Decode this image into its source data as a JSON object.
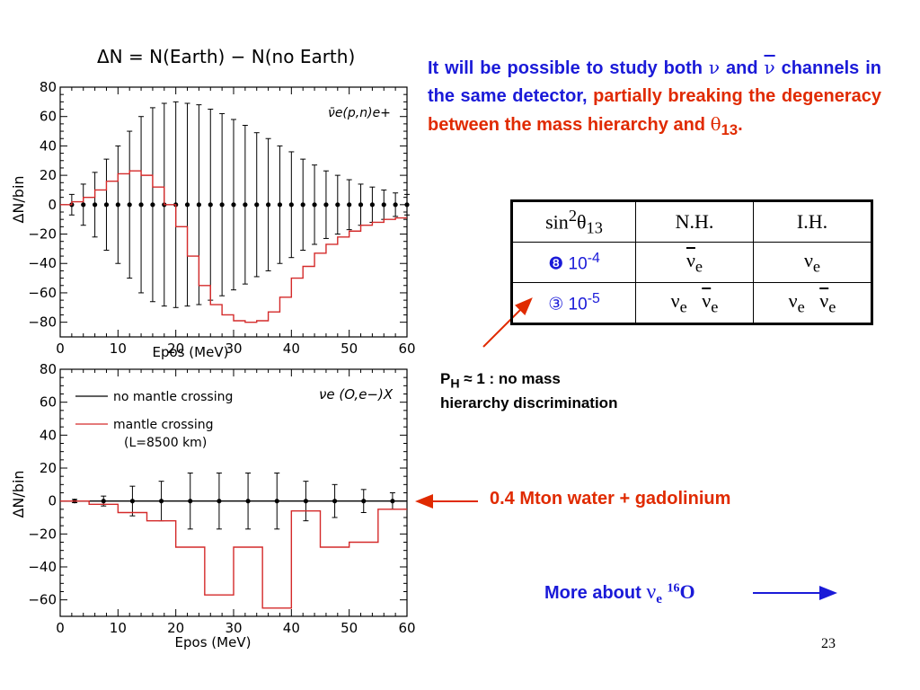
{
  "slide": {
    "paragraph": {
      "part1": "It will be possible to study both ",
      "nu": "ν",
      "and": " and ",
      "nubar": "ν",
      "part2": " channels in the same detector, ",
      "part3": "partially breaking the degeneracy between the mass hierarchy and ",
      "theta": "θ",
      "sub13": "13",
      "dot": "."
    },
    "table": {
      "header": {
        "sin": "sin",
        "sup2": "2",
        "theta": "θ",
        "sub13": "13",
        "nh": "N.H.",
        "ih": "I.H."
      },
      "row1": {
        "marker": "❽",
        "value": " 10",
        "exp": "-4",
        "nh_nu": "ν",
        "nh_sub": "e",
        "ih_nu": "ν",
        "ih_sub": "e"
      },
      "row2": {
        "marker": "③",
        "value": " 10",
        "exp": "-5",
        "nu": "ν",
        "sub": "e"
      }
    },
    "note": {
      "p": "P",
      "h": "H",
      "rest": " ≈ 1 :  no mass hierarchy discrimination"
    },
    "mton_label": "0.4 Mton water + gadolinium",
    "more": {
      "text": "More about  ",
      "nu": "ν",
      "sub": "e",
      "sup": "16",
      "o": "O"
    },
    "page_number": "23",
    "colors": {
      "blue": "#1a1ad8",
      "red": "#e02a00",
      "plot_red": "#d42a2a"
    }
  },
  "chart_data": [
    {
      "type": "line",
      "title": "ΔN = N(Earth) − N(no Earth)",
      "annotation": "ν̄e(p,n)e+",
      "xlabel": "Epos (MeV)",
      "ylabel": "ΔN/bin",
      "xlim": [
        0,
        60
      ],
      "ylim": [
        -90,
        80
      ],
      "xticks": [
        "0",
        "10",
        "20",
        "30",
        "40",
        "50",
        "60"
      ],
      "yticks": [
        "−80",
        "−60",
        "−40",
        "−20",
        "0",
        "20",
        "40",
        "60",
        "80"
      ],
      "grid": false,
      "error_bars": {
        "x": [
          2,
          4,
          6,
          8,
          10,
          12,
          14,
          16,
          18,
          20,
          22,
          24,
          26,
          28,
          30,
          32,
          34,
          36,
          38,
          40,
          42,
          44,
          46,
          48,
          50,
          52,
          54,
          56,
          58,
          60
        ],
        "y": [
          0,
          0,
          0,
          0,
          0,
          0,
          0,
          0,
          0,
          0,
          0,
          0,
          0,
          0,
          0,
          0,
          0,
          0,
          0,
          0,
          0,
          0,
          0,
          0,
          0,
          0,
          0,
          0,
          0,
          0
        ],
        "err": [
          7,
          14,
          22,
          31,
          40,
          50,
          60,
          66,
          69,
          70,
          69,
          68,
          65,
          62,
          58,
          54,
          49,
          45,
          40,
          36,
          31,
          27,
          23,
          20,
          17,
          14,
          12,
          10,
          8,
          7
        ]
      },
      "series": [
        {
          "color": "#d42a2a",
          "x": [
            1,
            3,
            5,
            7,
            9,
            11,
            13,
            15,
            17,
            19,
            21,
            23,
            25,
            27,
            29,
            31,
            33,
            35,
            37,
            39,
            41,
            43,
            45,
            47,
            49,
            51,
            53,
            55,
            57,
            59
          ],
          "values": [
            0,
            2,
            5,
            10,
            16,
            21,
            23,
            20,
            12,
            0,
            -15,
            -35,
            -55,
            -68,
            -75,
            -79,
            -80,
            -79,
            -73,
            -63,
            -50,
            -42,
            -33,
            -27,
            -22,
            -18,
            -14,
            -12,
            -10,
            -9
          ]
        }
      ]
    },
    {
      "type": "line",
      "title": "",
      "annotation": "νe (O,e−)X",
      "xlabel": "Epos (MeV)",
      "ylabel": "ΔN/bin",
      "xlim": [
        0,
        60
      ],
      "ylim": [
        -70,
        80
      ],
      "xticks": [
        "0",
        "10",
        "20",
        "30",
        "40",
        "50",
        "60"
      ],
      "yticks": [
        "−60",
        "−40",
        "−20",
        "0",
        "20",
        "40",
        "60",
        "80"
      ],
      "grid": false,
      "legend": {
        "placement": "top-left",
        "entries": [
          {
            "name": "no mantle crossing",
            "color": "#000000"
          },
          {
            "name": "mantle crossing",
            "sub": "(L=8500 km)",
            "color": "#d42a2a"
          }
        ]
      },
      "error_bars": {
        "x": [
          2.5,
          7.5,
          12.5,
          17.5,
          22.5,
          27.5,
          32.5,
          37.5,
          42.5,
          47.5,
          52.5,
          57.5
        ],
        "y": [
          0,
          0,
          0,
          0,
          0,
          0,
          0,
          0,
          0,
          0,
          0,
          0
        ],
        "err": [
          1,
          3,
          9,
          12,
          17,
          17,
          17,
          17,
          12,
          10,
          7,
          5
        ]
      },
      "series": [
        {
          "name": "no mantle crossing",
          "color": "#000000",
          "x": [
            0,
            60
          ],
          "values": [
            0,
            0
          ]
        },
        {
          "name": "mantle crossing",
          "color": "#d42a2a",
          "x": [
            0,
            5,
            10,
            15,
            20,
            25,
            30,
            35,
            40,
            45,
            50,
            55
          ],
          "values": [
            0,
            -2,
            -7,
            -12,
            -28,
            -57,
            -28,
            -65,
            -6,
            -28,
            -25,
            -5
          ]
        }
      ]
    }
  ]
}
